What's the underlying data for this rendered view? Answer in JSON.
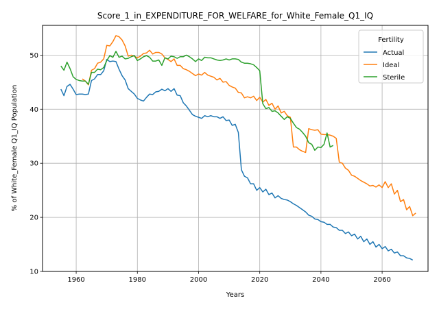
{
  "chart_data": {
    "type": "line",
    "title": "Score_1_in_EXPENDITURE_FOR_WELFARE_for_White_Female_Q1_IQ",
    "xlabel": "Years",
    "ylabel": "% of White_Female Q1_IQ Population",
    "xlim": [
      1949,
      2075
    ],
    "ylim": [
      10,
      55.5
    ],
    "xticks": [
      1960,
      1980,
      2000,
      2020,
      2040,
      2060
    ],
    "yticks": [
      10,
      20,
      30,
      40,
      50
    ],
    "grid": true,
    "legend": {
      "title": "Fertility",
      "placement": "top-right"
    },
    "series": [
      {
        "name": "Actual",
        "color": "#1f77b4",
        "points": [
          [
            1955,
            43.7
          ],
          [
            1956,
            42.5
          ],
          [
            1957,
            44.2
          ],
          [
            1958,
            44.6
          ],
          [
            1959,
            43.7
          ],
          [
            1960,
            42.7
          ],
          [
            1961,
            42.8
          ],
          [
            1962,
            42.8
          ],
          [
            1963,
            42.7
          ],
          [
            1964,
            42.8
          ],
          [
            1965,
            45.3
          ],
          [
            1966,
            45.6
          ],
          [
            1967,
            46.4
          ],
          [
            1968,
            46.4
          ],
          [
            1969,
            47.1
          ],
          [
            1970,
            49.2
          ],
          [
            1971,
            48.8
          ],
          [
            1972,
            48.9
          ],
          [
            1973,
            48.8
          ],
          [
            1974,
            47.4
          ],
          [
            1975,
            46.2
          ],
          [
            1976,
            45.4
          ],
          [
            1977,
            43.8
          ],
          [
            1978,
            43.3
          ],
          [
            1979,
            42.8
          ],
          [
            1980,
            42.0
          ],
          [
            1981,
            41.7
          ],
          [
            1982,
            41.5
          ],
          [
            1983,
            42.2
          ],
          [
            1984,
            42.8
          ],
          [
            1985,
            42.7
          ],
          [
            1986,
            43.2
          ],
          [
            1987,
            43.3
          ],
          [
            1988,
            43.7
          ],
          [
            1989,
            43.4
          ],
          [
            1990,
            43.8
          ],
          [
            1991,
            43.3
          ],
          [
            1992,
            43.8
          ],
          [
            1993,
            42.6
          ],
          [
            1994,
            42.5
          ],
          [
            1995,
            41.2
          ],
          [
            1996,
            40.6
          ],
          [
            1997,
            39.8
          ],
          [
            1998,
            39.0
          ],
          [
            1999,
            38.7
          ],
          [
            2000,
            38.5
          ],
          [
            2001,
            38.3
          ],
          [
            2002,
            38.8
          ],
          [
            2003,
            38.6
          ],
          [
            2004,
            38.8
          ],
          [
            2005,
            38.6
          ],
          [
            2006,
            38.6
          ],
          [
            2007,
            38.3
          ],
          [
            2008,
            38.6
          ],
          [
            2009,
            37.9
          ],
          [
            2010,
            38.0
          ],
          [
            2011,
            37.0
          ],
          [
            2012,
            37.2
          ],
          [
            2013,
            35.7
          ],
          [
            2014,
            28.8
          ],
          [
            2015,
            27.6
          ],
          [
            2016,
            27.3
          ],
          [
            2017,
            26.2
          ],
          [
            2018,
            26.2
          ],
          [
            2019,
            25.0
          ],
          [
            2020,
            25.5
          ],
          [
            2021,
            24.7
          ],
          [
            2022,
            25.2
          ],
          [
            2023,
            24.2
          ],
          [
            2024,
            24.5
          ],
          [
            2025,
            23.6
          ],
          [
            2026,
            24.0
          ],
          [
            2027,
            23.5
          ],
          [
            2028,
            23.3
          ],
          [
            2029,
            23.2
          ],
          [
            2030,
            22.9
          ],
          [
            2031,
            22.5
          ],
          [
            2032,
            22.2
          ],
          [
            2033,
            21.8
          ],
          [
            2034,
            21.4
          ],
          [
            2035,
            21.0
          ],
          [
            2036,
            20.4
          ],
          [
            2037,
            20.2
          ],
          [
            2038,
            19.7
          ],
          [
            2039,
            19.6
          ],
          [
            2040,
            19.2
          ],
          [
            2041,
            19.1
          ],
          [
            2042,
            18.7
          ],
          [
            2043,
            18.7
          ],
          [
            2044,
            18.2
          ],
          [
            2045,
            18.1
          ],
          [
            2046,
            17.6
          ],
          [
            2047,
            17.6
          ],
          [
            2048,
            17.0
          ],
          [
            2049,
            17.3
          ],
          [
            2050,
            16.6
          ],
          [
            2051,
            16.9
          ],
          [
            2052,
            16.0
          ],
          [
            2053,
            16.5
          ],
          [
            2054,
            15.5
          ],
          [
            2055,
            16.0
          ],
          [
            2056,
            15.0
          ],
          [
            2057,
            15.5
          ],
          [
            2058,
            14.5
          ],
          [
            2059,
            15.0
          ],
          [
            2060,
            14.2
          ],
          [
            2061,
            14.6
          ],
          [
            2062,
            13.8
          ],
          [
            2063,
            14.1
          ],
          [
            2064,
            13.4
          ],
          [
            2065,
            13.6
          ],
          [
            2066,
            12.9
          ],
          [
            2067,
            12.9
          ],
          [
            2068,
            12.5
          ],
          [
            2069,
            12.4
          ],
          [
            2070,
            12.1
          ]
        ]
      },
      {
        "name": "Ideal",
        "color": "#ff7f0e",
        "points": [
          [
            1962,
            45.6
          ],
          [
            1963,
            45.2
          ],
          [
            1964,
            44.5
          ],
          [
            1965,
            47.2
          ],
          [
            1966,
            47.5
          ],
          [
            1967,
            48.5
          ],
          [
            1968,
            48.7
          ],
          [
            1969,
            49.3
          ],
          [
            1970,
            51.8
          ],
          [
            1971,
            51.7
          ],
          [
            1972,
            52.5
          ],
          [
            1973,
            53.6
          ],
          [
            1974,
            53.4
          ],
          [
            1975,
            52.8
          ],
          [
            1976,
            51.7
          ],
          [
            1977,
            49.8
          ],
          [
            1978,
            50.0
          ],
          [
            1979,
            49.8
          ],
          [
            1980,
            49.5
          ],
          [
            1981,
            49.8
          ],
          [
            1982,
            50.3
          ],
          [
            1983,
            50.4
          ],
          [
            1984,
            50.9
          ],
          [
            1985,
            50.2
          ],
          [
            1986,
            50.5
          ],
          [
            1987,
            50.5
          ],
          [
            1988,
            50.2
          ],
          [
            1989,
            49.5
          ],
          [
            1990,
            49.2
          ],
          [
            1991,
            48.8
          ],
          [
            1992,
            49.3
          ],
          [
            1993,
            48.1
          ],
          [
            1994,
            48.1
          ],
          [
            1995,
            47.5
          ],
          [
            1996,
            47.3
          ],
          [
            1997,
            47.0
          ],
          [
            1998,
            46.6
          ],
          [
            1999,
            46.2
          ],
          [
            2000,
            46.5
          ],
          [
            2001,
            46.3
          ],
          [
            2002,
            46.8
          ],
          [
            2003,
            46.3
          ],
          [
            2004,
            46.1
          ],
          [
            2005,
            45.9
          ],
          [
            2006,
            45.4
          ],
          [
            2007,
            45.7
          ],
          [
            2008,
            45.0
          ],
          [
            2009,
            45.1
          ],
          [
            2010,
            44.4
          ],
          [
            2011,
            44.1
          ],
          [
            2012,
            43.9
          ],
          [
            2013,
            43.1
          ],
          [
            2014,
            43.0
          ],
          [
            2015,
            42.1
          ],
          [
            2016,
            42.3
          ],
          [
            2017,
            42.1
          ],
          [
            2018,
            42.4
          ],
          [
            2019,
            41.6
          ],
          [
            2020,
            42.2
          ],
          [
            2021,
            41.3
          ],
          [
            2022,
            41.8
          ],
          [
            2023,
            40.7
          ],
          [
            2024,
            41.1
          ],
          [
            2025,
            40.0
          ],
          [
            2026,
            40.6
          ],
          [
            2027,
            39.3
          ],
          [
            2028,
            39.6
          ],
          [
            2029,
            38.8
          ],
          [
            2030,
            38.5
          ],
          [
            2031,
            33.0
          ],
          [
            2032,
            33.0
          ],
          [
            2033,
            32.5
          ],
          [
            2034,
            32.2
          ],
          [
            2035,
            32.0
          ],
          [
            2036,
            36.4
          ],
          [
            2037,
            36.2
          ],
          [
            2038,
            36.1
          ],
          [
            2039,
            36.2
          ],
          [
            2040,
            35.4
          ],
          [
            2041,
            35.3
          ],
          [
            2042,
            35.3
          ],
          [
            2043,
            35.2
          ],
          [
            2044,
            35.0
          ],
          [
            2045,
            34.6
          ],
          [
            2046,
            30.2
          ],
          [
            2047,
            30.0
          ],
          [
            2048,
            29.1
          ],
          [
            2049,
            28.7
          ],
          [
            2050,
            27.8
          ],
          [
            2051,
            27.6
          ],
          [
            2052,
            27.2
          ],
          [
            2053,
            26.8
          ],
          [
            2054,
            26.5
          ],
          [
            2055,
            26.2
          ],
          [
            2056,
            25.8
          ],
          [
            2057,
            25.9
          ],
          [
            2058,
            25.6
          ],
          [
            2059,
            26.0
          ],
          [
            2060,
            25.5
          ],
          [
            2061,
            26.6
          ],
          [
            2062,
            25.5
          ],
          [
            2063,
            26.2
          ],
          [
            2064,
            24.3
          ],
          [
            2065,
            25.0
          ],
          [
            2066,
            22.9
          ],
          [
            2067,
            23.3
          ],
          [
            2068,
            21.4
          ],
          [
            2069,
            22.0
          ],
          [
            2070,
            20.3
          ],
          [
            2071,
            20.8
          ]
        ]
      },
      {
        "name": "Sterile",
        "color": "#2ca02c",
        "points": [
          [
            1955,
            48.0
          ],
          [
            1956,
            47.2
          ],
          [
            1957,
            48.7
          ],
          [
            1958,
            47.5
          ],
          [
            1959,
            46.0
          ],
          [
            1960,
            45.5
          ],
          [
            1961,
            45.3
          ],
          [
            1962,
            45.2
          ],
          [
            1963,
            45.2
          ],
          [
            1964,
            44.6
          ],
          [
            1965,
            46.8
          ],
          [
            1966,
            46.8
          ],
          [
            1967,
            47.4
          ],
          [
            1968,
            47.3
          ],
          [
            1969,
            47.7
          ],
          [
            1970,
            49.0
          ],
          [
            1971,
            49.9
          ],
          [
            1972,
            49.6
          ],
          [
            1973,
            50.7
          ],
          [
            1974,
            49.6
          ],
          [
            1975,
            49.8
          ],
          [
            1976,
            49.3
          ],
          [
            1977,
            49.4
          ],
          [
            1978,
            49.7
          ],
          [
            1979,
            49.9
          ],
          [
            1980,
            49.0
          ],
          [
            1981,
            49.3
          ],
          [
            1982,
            49.7
          ],
          [
            1983,
            49.9
          ],
          [
            1984,
            49.6
          ],
          [
            1985,
            48.9
          ],
          [
            1986,
            48.9
          ],
          [
            1987,
            49.1
          ],
          [
            1988,
            48.1
          ],
          [
            1989,
            49.5
          ],
          [
            1990,
            49.3
          ],
          [
            1991,
            49.8
          ],
          [
            1992,
            49.7
          ],
          [
            1993,
            49.4
          ],
          [
            1994,
            49.7
          ],
          [
            1995,
            49.7
          ],
          [
            1996,
            50.0
          ],
          [
            1997,
            49.7
          ],
          [
            1998,
            49.3
          ],
          [
            1999,
            48.8
          ],
          [
            2000,
            49.3
          ],
          [
            2001,
            49.0
          ],
          [
            2002,
            49.6
          ],
          [
            2003,
            49.5
          ],
          [
            2004,
            49.5
          ],
          [
            2005,
            49.3
          ],
          [
            2006,
            49.1
          ],
          [
            2007,
            49.0
          ],
          [
            2008,
            49.1
          ],
          [
            2009,
            49.3
          ],
          [
            2010,
            49.1
          ],
          [
            2011,
            49.3
          ],
          [
            2012,
            49.3
          ],
          [
            2013,
            49.2
          ],
          [
            2014,
            48.7
          ],
          [
            2015,
            48.5
          ],
          [
            2016,
            48.5
          ],
          [
            2017,
            48.4
          ],
          [
            2018,
            48.2
          ],
          [
            2019,
            47.7
          ],
          [
            2020,
            47.1
          ],
          [
            2021,
            41.0
          ],
          [
            2022,
            40.1
          ],
          [
            2023,
            40.3
          ],
          [
            2024,
            39.6
          ],
          [
            2025,
            39.7
          ],
          [
            2026,
            39.3
          ],
          [
            2027,
            38.7
          ],
          [
            2028,
            38.1
          ],
          [
            2029,
            38.6
          ],
          [
            2030,
            38.3
          ],
          [
            2031,
            37.4
          ],
          [
            2032,
            36.6
          ],
          [
            2033,
            36.3
          ],
          [
            2034,
            35.7
          ],
          [
            2035,
            35.0
          ],
          [
            2036,
            33.8
          ],
          [
            2037,
            33.5
          ],
          [
            2038,
            32.4
          ],
          [
            2039,
            33.0
          ],
          [
            2040,
            32.9
          ],
          [
            2041,
            33.5
          ],
          [
            2042,
            35.6
          ],
          [
            2043,
            33.0
          ],
          [
            2044,
            33.3
          ]
        ]
      }
    ]
  }
}
